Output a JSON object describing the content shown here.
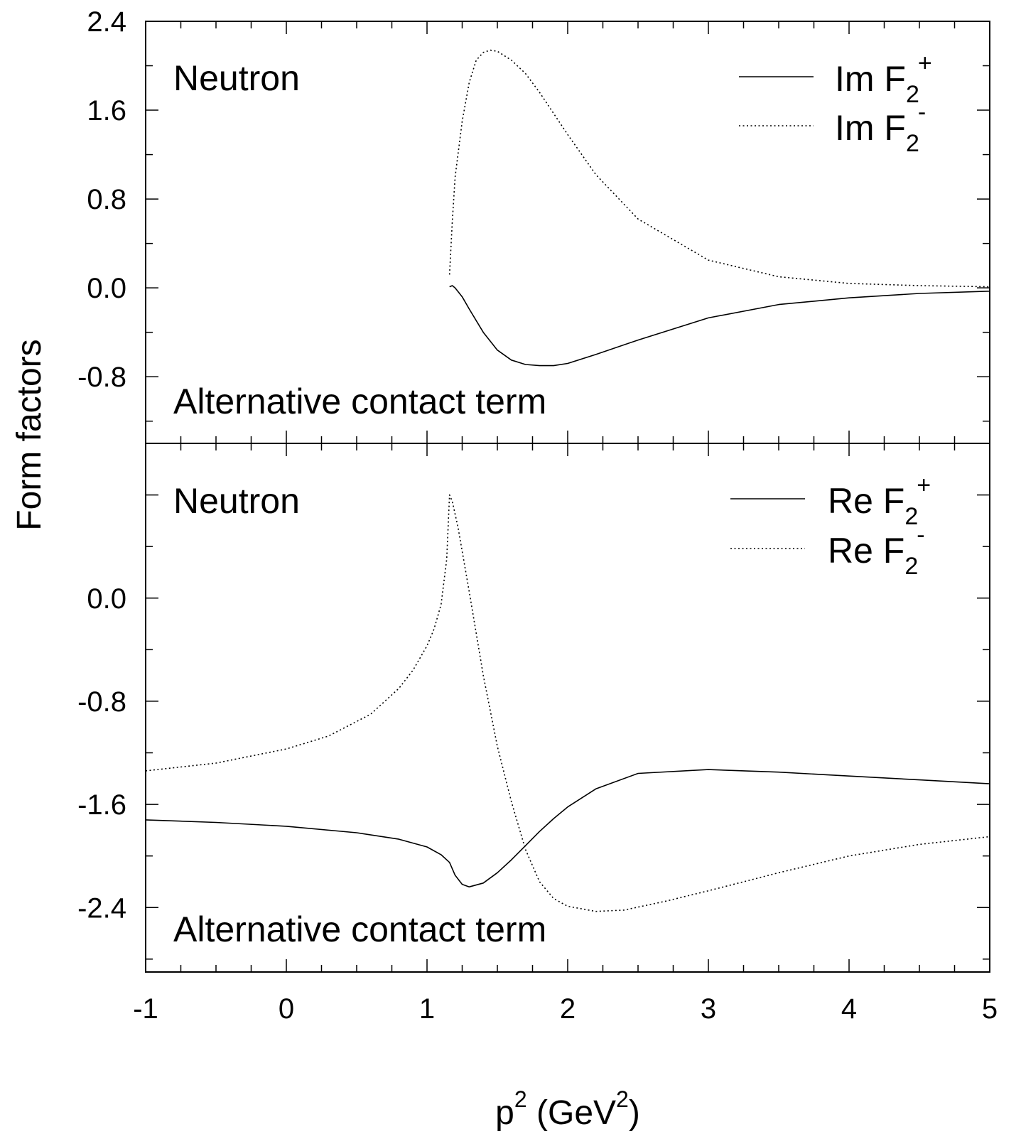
{
  "chart_data": [
    {
      "type": "line",
      "panel": "top",
      "annotations": [
        "Neutron",
        "Alternative contact term"
      ],
      "xlim": [
        -1,
        5
      ],
      "ylim": [
        -1.4,
        2.4
      ],
      "yticks": [
        "2.4",
        "1.6",
        "0.8",
        "0.0",
        "-0.8"
      ],
      "ytick_values": [
        2.4,
        1.6,
        0.8,
        0.0,
        -0.8
      ],
      "grid": false,
      "legend_position": "top-right",
      "series": [
        {
          "name": "Im F2+",
          "legend_main": "Im F",
          "legend_sub": "2",
          "legend_sup": "+",
          "style": "solid",
          "x": [
            1.16,
            1.18,
            1.2,
            1.25,
            1.3,
            1.4,
            1.5,
            1.6,
            1.7,
            1.8,
            1.85,
            1.9,
            2.0,
            2.2,
            2.5,
            3.0,
            3.5,
            4.0,
            4.5,
            5.0
          ],
          "y": [
            0.01,
            0.02,
            0.0,
            -0.08,
            -0.19,
            -0.4,
            -0.56,
            -0.65,
            -0.69,
            -0.7,
            -0.7,
            -0.7,
            -0.68,
            -0.6,
            -0.47,
            -0.27,
            -0.15,
            -0.09,
            -0.05,
            -0.03
          ]
        },
        {
          "name": "Im F2-",
          "legend_main": "Im F",
          "legend_sub": "2",
          "legend_sup": "-",
          "style": "dotted",
          "x": [
            1.16,
            1.18,
            1.2,
            1.25,
            1.3,
            1.35,
            1.4,
            1.45,
            1.5,
            1.6,
            1.7,
            1.8,
            1.9,
            2.0,
            2.2,
            2.5,
            3.0,
            3.5,
            4.0,
            4.5,
            5.0
          ],
          "y": [
            0.12,
            0.6,
            1.0,
            1.5,
            1.85,
            2.05,
            2.12,
            2.14,
            2.13,
            2.05,
            1.93,
            1.76,
            1.57,
            1.38,
            1.02,
            0.62,
            0.25,
            0.1,
            0.04,
            0.02,
            0.01
          ]
        }
      ]
    },
    {
      "type": "line",
      "panel": "bottom",
      "annotations": [
        "Neutron",
        "Alternative contact term"
      ],
      "xlim": [
        -1,
        5
      ],
      "ylim": [
        -2.9,
        1.2
      ],
      "yticks": [
        "0.0",
        "-0.8",
        "-1.6",
        "-2.4"
      ],
      "ytick_values": [
        0.0,
        -0.8,
        -1.6,
        -2.4
      ],
      "grid": false,
      "legend_position": "top-right",
      "series": [
        {
          "name": "Re F2+",
          "legend_main": "Re F",
          "legend_sub": "2",
          "legend_sup": "+",
          "style": "solid",
          "x": [
            -1.0,
            -0.5,
            0.0,
            0.5,
            0.8,
            1.0,
            1.1,
            1.16,
            1.2,
            1.25,
            1.3,
            1.4,
            1.5,
            1.6,
            1.7,
            1.8,
            1.9,
            2.0,
            2.2,
            2.5,
            3.0,
            3.5,
            4.0,
            4.5,
            5.0
          ],
          "y": [
            -1.72,
            -1.74,
            -1.77,
            -1.82,
            -1.87,
            -1.93,
            -1.99,
            -2.05,
            -2.15,
            -2.22,
            -2.24,
            -2.21,
            -2.13,
            -2.03,
            -1.92,
            -1.81,
            -1.71,
            -1.62,
            -1.48,
            -1.36,
            -1.33,
            -1.35,
            -1.38,
            -1.41,
            -1.44
          ]
        },
        {
          "name": "Re F2-",
          "legend_main": "Re F",
          "legend_sub": "2",
          "legend_sup": "-",
          "style": "dotted",
          "x": [
            -1.0,
            -0.5,
            0.0,
            0.3,
            0.6,
            0.8,
            0.9,
            1.0,
            1.05,
            1.1,
            1.14,
            1.16,
            1.18,
            1.22,
            1.3,
            1.4,
            1.5,
            1.6,
            1.7,
            1.8,
            1.9,
            2.0,
            2.2,
            2.4,
            2.7,
            3.0,
            3.5,
            4.0,
            4.5,
            5.0
          ],
          "y": [
            -1.34,
            -1.28,
            -1.17,
            -1.07,
            -0.9,
            -0.7,
            -0.56,
            -0.37,
            -0.24,
            -0.05,
            0.3,
            0.8,
            0.75,
            0.55,
            0.05,
            -0.6,
            -1.15,
            -1.58,
            -1.95,
            -2.2,
            -2.33,
            -2.39,
            -2.43,
            -2.42,
            -2.35,
            -2.27,
            -2.13,
            -2.0,
            -1.91,
            -1.85
          ]
        }
      ]
    }
  ],
  "x_axis": {
    "ticks": [
      "-1",
      "0",
      "1",
      "2",
      "3",
      "4",
      "5"
    ],
    "tick_values": [
      -1,
      0,
      1,
      2,
      3,
      4,
      5
    ],
    "label_main": "p",
    "label_sup": "2",
    "label_unit_open": " (GeV",
    "label_unit_sup": "2",
    "label_unit_close": ")"
  },
  "y_axis": {
    "label": "Form factors"
  }
}
